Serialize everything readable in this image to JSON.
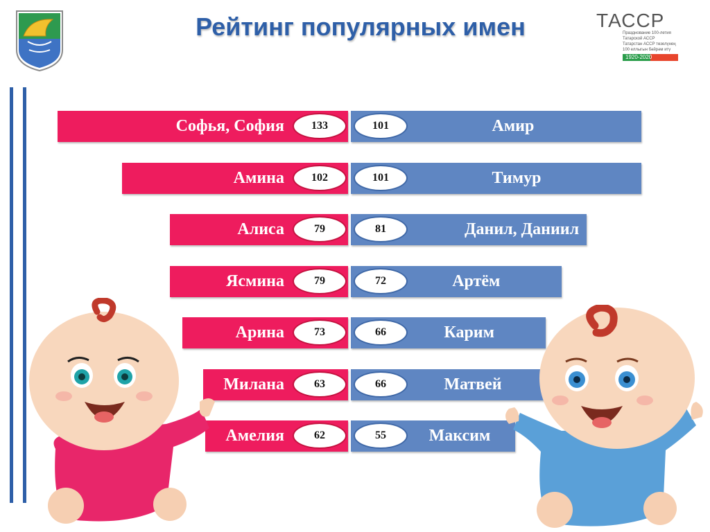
{
  "title": "Рейтинг популярных имен",
  "logo": {
    "brand": "ТАССР",
    "line1": "Празднование 100-летия",
    "line2": "Татарской АССР",
    "line3": "Татарстан АССР төзелүнең",
    "line4": "100 еллыгын бәйрәм итү",
    "years": "1920-2020"
  },
  "colors": {
    "girls": "#ee1c5e",
    "boys": "#5f86c2",
    "title": "#2e5fa8"
  },
  "chart_data": {
    "type": "bar",
    "orientation": "horizontal",
    "girls": {
      "names": [
        "Софья, София",
        "Амина",
        "Алиса",
        "Ясмина",
        "Арина",
        "Милана",
        "Амелия"
      ],
      "values": [
        133,
        102,
        79,
        79,
        73,
        63,
        62
      ]
    },
    "boys": {
      "names": [
        "Амир",
        "Тимур",
        "Данил, Даниил",
        "Артём",
        "Карим",
        "Матвей",
        "Максим"
      ],
      "values": [
        101,
        101,
        81,
        72,
        66,
        66,
        55
      ]
    }
  }
}
